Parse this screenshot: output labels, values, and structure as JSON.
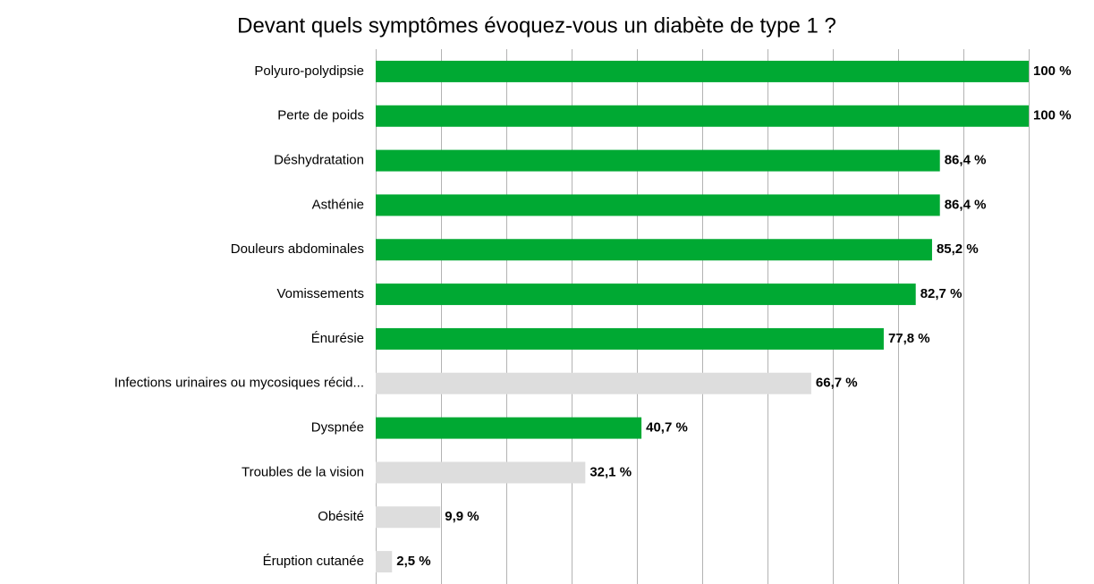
{
  "chart_data": {
    "type": "hbar",
    "title": "Devant quels symptômes évoquez-vous un diabète de type 1 ?",
    "categories": [
      "Polyuro-polydipsie",
      "Perte de poids",
      "Déshydratation",
      "Asthénie",
      "Douleurs abdominales",
      "Vomissements",
      "Énurésie",
      "Infections urinaires ou mycosiques récid...",
      "Dyspnée",
      "Troubles de la vision",
      "Obésité",
      "Éruption cutanée"
    ],
    "values": [
      100,
      100,
      86.4,
      86.4,
      85.2,
      82.7,
      77.8,
      66.7,
      40.7,
      32.1,
      9.9,
      2.5
    ],
    "value_labels": [
      "100 %",
      "100 %",
      "86,4 %",
      "86,4 %",
      "85,2 %",
      "82,7 %",
      "77,8 %",
      "66,7 %",
      "40,7 %",
      "32,1 %",
      "9,9 %",
      "2,5 %"
    ],
    "colors": [
      "#00a933",
      "#00a933",
      "#00a933",
      "#00a933",
      "#00a933",
      "#00a933",
      "#00a933",
      "#dddddd",
      "#00a933",
      "#dddddd",
      "#dddddd",
      "#dddddd"
    ],
    "xlim": [
      0,
      100
    ],
    "xticks": [
      0,
      10,
      20,
      30,
      40,
      50,
      60,
      70,
      80,
      90,
      100
    ],
    "grid": true
  }
}
